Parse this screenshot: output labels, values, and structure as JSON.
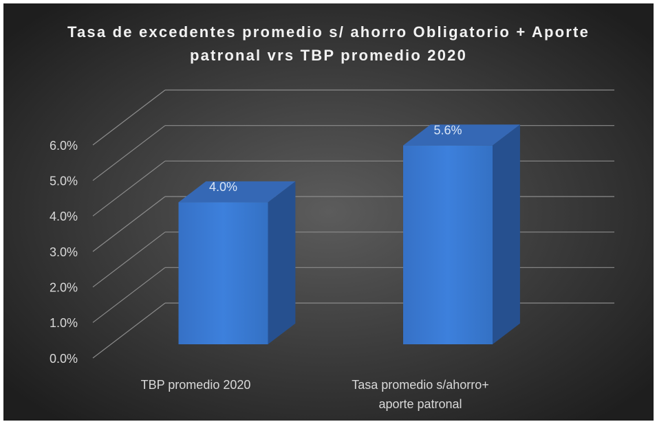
{
  "chart_data": {
    "type": "bar3d",
    "title": "Tasa de excedentes promedio s/ ahorro Obligatorio + Aporte patronal vrs TBP promedio 2020",
    "categories": [
      "TBP promedio 2020",
      "Tasa promedio s/ahorro+ aporte patronal"
    ],
    "values": [
      4.0,
      5.6
    ],
    "value_labels": [
      "4.0%",
      "5.6%"
    ],
    "color": "#3a78d0",
    "ylim": [
      0,
      6
    ],
    "yticks": [
      {
        "value": 0,
        "label": "0.0%"
      },
      {
        "value": 1,
        "label": "1.0%"
      },
      {
        "value": 2,
        "label": "2.0%"
      },
      {
        "value": 3,
        "label": "3.0%"
      },
      {
        "value": 4,
        "label": "4.0%"
      },
      {
        "value": 5,
        "label": "5.0%"
      },
      {
        "value": 6,
        "label": "6.0%"
      }
    ],
    "grid": true
  }
}
